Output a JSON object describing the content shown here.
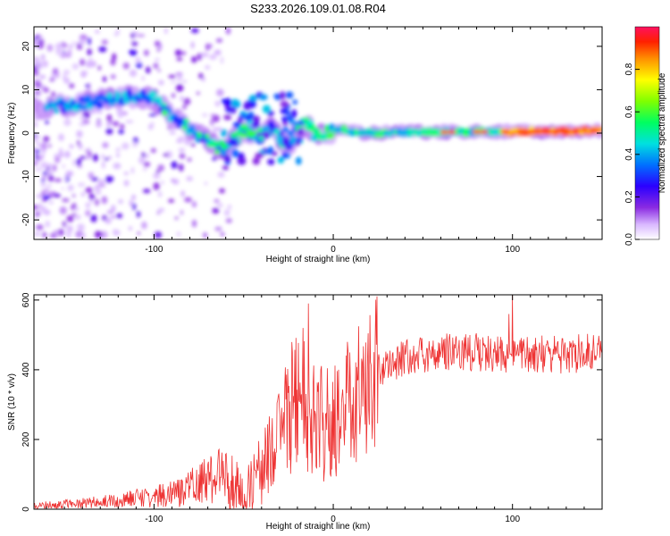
{
  "title": "S233.2026.109.01.08.R04",
  "chart_data": [
    {
      "type": "heatmap",
      "xlabel": "Height of straight line (km)",
      "ylabel": "Frequency (Hz)",
      "xlim": [
        -167,
        150
      ],
      "ylim": [
        -24.5,
        24.5
      ],
      "xticks": [
        -100,
        0,
        100
      ],
      "yticks": [
        -20,
        -10,
        0,
        10,
        20
      ],
      "colorbar": {
        "label": "Normalized spectral amplitude",
        "range": [
          0,
          1
        ],
        "ticks": [
          "0.0",
          "0.2",
          "0.4",
          "0.6",
          "0.8"
        ]
      },
      "ridge": {
        "x": [
          -160,
          -150,
          -140,
          -130,
          -120,
          -110,
          -100,
          -95,
          -90,
          -85,
          -80,
          -75,
          -70,
          -65,
          -60,
          -55,
          -50,
          -45,
          -40,
          -35,
          -30,
          -25,
          -20,
          -15,
          -10,
          -5,
          0,
          5,
          10,
          20,
          40,
          60,
          80,
          100,
          120,
          140,
          150
        ],
        "y": [
          6,
          6.5,
          7,
          7.5,
          8,
          8.5,
          8,
          6,
          4,
          2,
          1,
          -0.5,
          -2,
          -3.5,
          -3,
          -1.5,
          1,
          0,
          -1,
          1,
          -1,
          -3,
          1,
          2,
          0,
          0,
          0.5,
          0.8,
          0.3,
          0,
          0.2,
          0.2,
          0.3,
          0.3,
          0.4,
          0.5,
          0.6
        ]
      }
    },
    {
      "type": "line",
      "xlabel": "Height of straight line (km)",
      "ylabel": "SNR (10 * v/v)",
      "xlim": [
        -167,
        150
      ],
      "ylim": [
        0,
        615
      ],
      "xticks": [
        -100,
        0,
        100
      ],
      "yticks": [
        0,
        200,
        400,
        600
      ],
      "color": "#ee3333",
      "series": [
        {
          "name": "SNR",
          "x": [
            -167,
            -150,
            -130,
            -110,
            -90,
            -80,
            -70,
            -60,
            -55,
            -50,
            -45,
            -40,
            -35,
            -30,
            -25,
            -20,
            -15,
            -10,
            -5,
            0,
            5,
            10,
            15,
            20,
            25,
            30,
            40,
            50,
            60,
            70,
            80,
            90,
            100,
            110,
            120,
            130,
            140,
            150
          ],
          "y": [
            10,
            15,
            20,
            30,
            45,
            60,
            80,
            100,
            70,
            35,
            60,
            120,
            180,
            220,
            280,
            330,
            300,
            250,
            240,
            250,
            270,
            320,
            350,
            380,
            400,
            420,
            430,
            445,
            450,
            455,
            450,
            445,
            440,
            445,
            445,
            440,
            450,
            450
          ]
        }
      ],
      "spikes": [
        {
          "x": -14,
          "y": 590
        },
        {
          "x": 100,
          "y": 615
        },
        {
          "x": 98,
          "y": 560
        },
        {
          "x": -17,
          "y": 520
        }
      ]
    }
  ]
}
